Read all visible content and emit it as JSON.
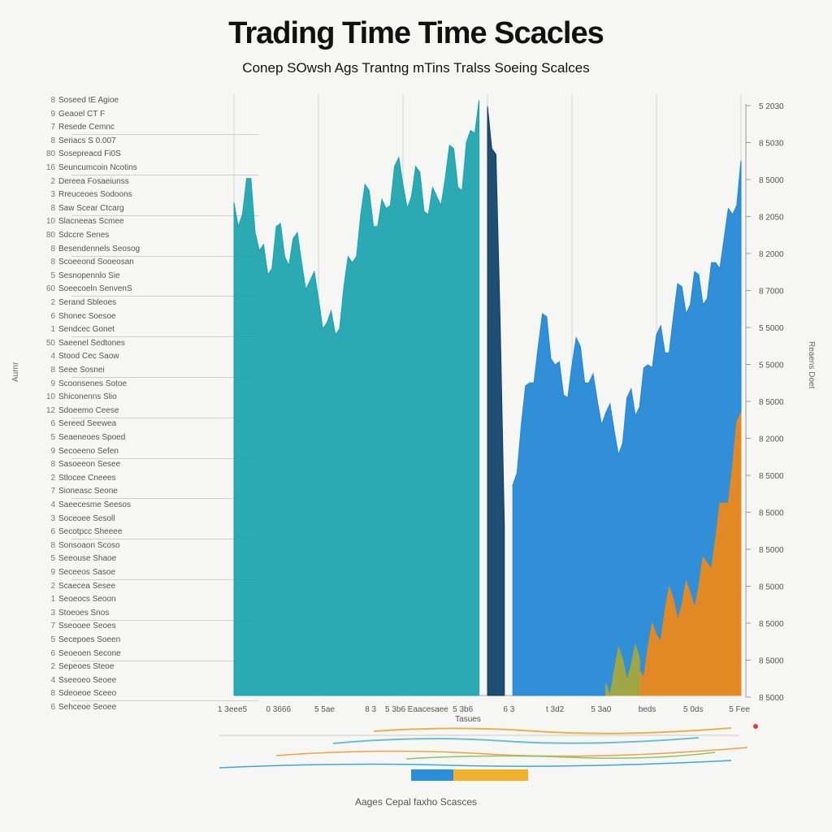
{
  "title": "Trading Time Time Scacles",
  "subtitle": "Conep SOwsh Ags Trantng  mTins Tralss Soeing Scalces",
  "footer_caption": "Aages Cepal faxho Scasces",
  "left_axis_title": "Aurnr",
  "right_axis_title": "Reaens Doet",
  "x_axis_title": "Tasues",
  "colors": {
    "teal": "#1aa3ad",
    "blue": "#1f86d4",
    "navy": "#0d3f66",
    "orange": "#f08a16",
    "olive": "#a8a83a",
    "grid": "#d4d4d4"
  },
  "left_labels": [
    {
      "num": "8",
      "text": "Soseed tE Agioe"
    },
    {
      "num": "9",
      "text": "Geaoel CT F"
    },
    {
      "num": "7",
      "text": "Resede Cemnc"
    },
    {
      "num": "8",
      "text": "Seriacs S 0.007"
    },
    {
      "num": "80",
      "text": "Sosepreacd Fi0S"
    },
    {
      "num": "16",
      "text": "Seuncumcoin Ncotins"
    },
    {
      "num": "2",
      "text": "Dereea Fosaeiunss"
    },
    {
      "num": "3",
      "text": "Rreuceoes Sodoons"
    },
    {
      "num": "8",
      "text": "Saw Scear Ctcarg"
    },
    {
      "num": "10",
      "text": "Slacneeas Scmee"
    },
    {
      "num": "80",
      "text": "Sdccre Senes"
    },
    {
      "num": "8",
      "text": "Besendennels Seosog"
    },
    {
      "num": "8",
      "text": "Scoeeond Sooeosan"
    },
    {
      "num": "5",
      "text": "Sesnopennlo Sie"
    },
    {
      "num": "60",
      "text": "Soeecoeln SenvenS"
    },
    {
      "num": "2",
      "text": "Serand Sbleoes"
    },
    {
      "num": "6",
      "text": "Shonec Soesoe"
    },
    {
      "num": "1",
      "text": "Sendcec Gonet"
    },
    {
      "num": "50",
      "text": "Saeenel Sedtones"
    },
    {
      "num": "4",
      "text": "Stood Cec Saow"
    },
    {
      "num": "8",
      "text": "Seee Sosnei"
    },
    {
      "num": "9",
      "text": "Scoonsenes Sotoe"
    },
    {
      "num": "10",
      "text": "Shiconenns Slio"
    },
    {
      "num": "12",
      "text": "Sdoeemo Ceese"
    },
    {
      "num": "6",
      "text": "Sereed Seewea"
    },
    {
      "num": "5",
      "text": "Seaeneoes Spoed"
    },
    {
      "num": "9",
      "text": "Secoeeno Sefen"
    },
    {
      "num": "8",
      "text": "Sasoeeon Sesee"
    },
    {
      "num": "2",
      "text": "Stlocee Cneees"
    },
    {
      "num": "7",
      "text": "Sioneasc Seone"
    },
    {
      "num": "4",
      "text": "Saeecesme Seesos"
    },
    {
      "num": "3",
      "text": "Soceoee Sesoll"
    },
    {
      "num": "6",
      "text": "Secotpcc Sheeee"
    },
    {
      "num": "8",
      "text": "Sonsoaon Scoso"
    },
    {
      "num": "5",
      "text": "Seeouse Shaoe"
    },
    {
      "num": "9",
      "text": "Seceeos Sasoe"
    },
    {
      "num": "2",
      "text": "Scaecea Sesee"
    },
    {
      "num": "1",
      "text": "Seoeocs Seoon"
    },
    {
      "num": "3",
      "text": "Stoeoes Snos"
    },
    {
      "num": "7",
      "text": "Sseooee Seoes"
    },
    {
      "num": "5",
      "text": "Secepoes Soeen"
    },
    {
      "num": "6",
      "text": "Seoeoen Secone"
    },
    {
      "num": "2",
      "text": "Sepeoes Steoe"
    },
    {
      "num": "4",
      "text": "Sseeoeo Seoee"
    },
    {
      "num": "8",
      "text": "Sdeoeoe Sceeo"
    },
    {
      "num": "6",
      "text": "Sehceoe Seoee"
    }
  ],
  "chart_data": {
    "type": "area",
    "title": "Trading Time Time Scacles",
    "subtitle": "Conep SOwsh Ags Trantng  mTins Tralss Soeing Scalces",
    "xlabel": "Tasues",
    "x_ticks": [
      "1 3eee5",
      "0 3666",
      "5 5ae",
      "8 3",
      "5 3b6 Eaacesaee",
      "5 3b6",
      "6 3",
      "t 3d2",
      "5 3a0",
      "beds",
      "5 0ds",
      "5 Fee"
    ],
    "y_ticks_right": [
      "5 2030",
      "8 5030",
      "8 5000",
      "8 2050",
      "8 2000",
      "8 7000",
      "5 5000",
      "5 5000",
      "8 5000",
      "8 2000",
      "8 5000",
      "8 5000",
      "8 5000",
      "8 5000",
      "8 5000",
      "8 5000",
      "8 5000"
    ],
    "ylim": [
      0,
      100
    ],
    "grid": true,
    "series": [
      {
        "color": "#1aa3ad",
        "x": [
          0,
          1,
          2,
          3,
          4,
          5,
          6,
          7,
          8,
          9,
          10,
          11,
          12,
          13,
          14,
          15,
          16,
          17,
          18,
          19,
          20,
          21,
          22,
          23,
          24,
          25,
          26,
          27,
          28,
          29
        ],
        "values": [
          82,
          80,
          86,
          74,
          70,
          78,
          73,
          76,
          72,
          69,
          66,
          62,
          60,
          68,
          72,
          80,
          84,
          78,
          81,
          88,
          85,
          83,
          87,
          80,
          83,
          86,
          91,
          84,
          94,
          99
        ]
      },
      {
        "color": "#0d3f66",
        "x": [
          30,
          31,
          32
        ],
        "values": [
          98,
          90,
          28
        ]
      },
      {
        "color": "#1f86d4",
        "x": [
          33,
          34,
          35,
          36,
          37,
          38,
          39,
          40,
          41,
          42,
          43,
          44,
          45,
          46,
          47,
          48,
          49,
          50,
          51,
          52,
          53,
          54,
          55,
          56,
          57,
          58,
          59,
          60
        ],
        "values": [
          35,
          45,
          52,
          58,
          63,
          55,
          50,
          55,
          58,
          52,
          49,
          47,
          44,
          42,
          51,
          48,
          55,
          60,
          57,
          63,
          68,
          65,
          70,
          66,
          72,
          76,
          80,
          89
        ]
      },
      {
        "color": "#f08a16",
        "x": [
          48,
          49,
          50,
          51,
          52,
          53,
          54,
          55,
          56,
          57,
          58,
          59,
          60
        ],
        "values": [
          4,
          8,
          10,
          14,
          16,
          15,
          17,
          18,
          22,
          26,
          32,
          38,
          47
        ]
      },
      {
        "color": "#a8a83a",
        "x": [
          44,
          45,
          46,
          47,
          48
        ],
        "values": [
          2,
          4,
          6,
          5,
          6
        ]
      }
    ]
  }
}
